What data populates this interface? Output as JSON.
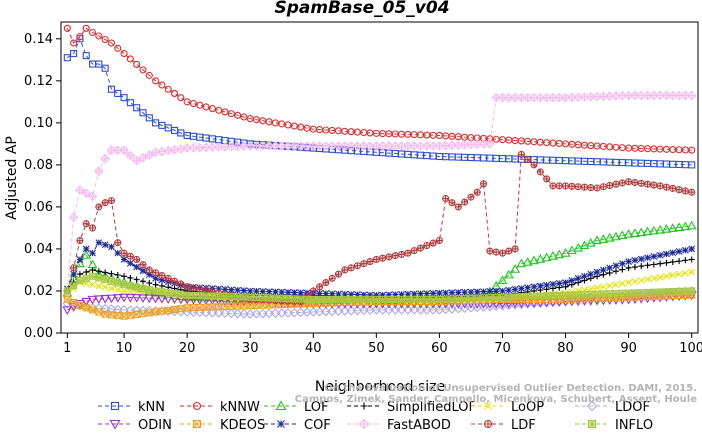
{
  "chart_data": {
    "type": "line",
    "title": "SpamBase_05_v04",
    "xlabel": "Neighborhood size",
    "ylabel": "Adjusted AP",
    "xlim": [
      0,
      101
    ],
    "ylim": [
      0,
      0.148
    ],
    "xticks": [
      1,
      10,
      20,
      30,
      40,
      50,
      60,
      70,
      80,
      90,
      100
    ],
    "yticks": [
      0.0,
      0.02,
      0.04,
      0.06,
      0.08,
      0.1,
      0.12,
      0.14
    ],
    "ytick_labels": [
      "0.00",
      "0.02",
      "0.04",
      "0.06",
      "0.08",
      "0.10",
      "0.12",
      "0.14"
    ],
    "grid": false,
    "legend_position": "bottom",
    "credit": "Campos, Zimek, Sander, Campello, Micenkova, Schubert, Assent, Houle",
    "credit_line1": "On the Evaluation of Unsupervised Outlier Detection. DAMI, 2015.",
    "series": [
      {
        "name": "kNN",
        "color": "#2b4fd1",
        "marker": "square",
        "points": [
          [
            1,
            0.131
          ],
          [
            2,
            0.133
          ],
          [
            3,
            0.14
          ],
          [
            4,
            0.132
          ],
          [
            5,
            0.128
          ],
          [
            6,
            0.128
          ],
          [
            7,
            0.126
          ],
          [
            8,
            0.116
          ],
          [
            10,
            0.112
          ],
          [
            15,
            0.1
          ],
          [
            20,
            0.094
          ],
          [
            30,
            0.09
          ],
          [
            40,
            0.088
          ],
          [
            50,
            0.086
          ],
          [
            60,
            0.084
          ],
          [
            70,
            0.083
          ],
          [
            80,
            0.082
          ],
          [
            90,
            0.081
          ],
          [
            100,
            0.08
          ]
        ]
      },
      {
        "name": "kNNW",
        "color": "#dd2a2a",
        "marker": "circle",
        "points": [
          [
            1,
            0.145
          ],
          [
            2,
            0.138
          ],
          [
            3,
            0.141
          ],
          [
            4,
            0.145
          ],
          [
            5,
            0.143
          ],
          [
            8,
            0.138
          ],
          [
            10,
            0.133
          ],
          [
            15,
            0.12
          ],
          [
            20,
            0.11
          ],
          [
            30,
            0.102
          ],
          [
            40,
            0.097
          ],
          [
            50,
            0.095
          ],
          [
            60,
            0.094
          ],
          [
            70,
            0.092
          ],
          [
            80,
            0.09
          ],
          [
            90,
            0.088
          ],
          [
            100,
            0.087
          ]
        ]
      },
      {
        "name": "LOF",
        "color": "#20c620",
        "marker": "triangle",
        "points": [
          [
            1,
            0.019
          ],
          [
            2,
            0.026
          ],
          [
            3,
            0.033
          ],
          [
            4,
            0.037
          ],
          [
            6,
            0.028
          ],
          [
            10,
            0.024
          ],
          [
            15,
            0.019
          ],
          [
            20,
            0.017
          ],
          [
            30,
            0.016
          ],
          [
            40,
            0.016
          ],
          [
            50,
            0.016
          ],
          [
            60,
            0.016
          ],
          [
            67,
            0.017
          ],
          [
            70,
            0.025
          ],
          [
            73,
            0.033
          ],
          [
            80,
            0.038
          ],
          [
            85,
            0.044
          ],
          [
            90,
            0.047
          ],
          [
            95,
            0.049
          ],
          [
            100,
            0.051
          ]
        ]
      },
      {
        "name": "SimplifiedLOF",
        "color": "#000000",
        "marker": "plus",
        "points": [
          [
            1,
            0.02
          ],
          [
            3,
            0.028
          ],
          [
            5,
            0.03
          ],
          [
            10,
            0.027
          ],
          [
            15,
            0.023
          ],
          [
            20,
            0.02
          ],
          [
            30,
            0.018
          ],
          [
            40,
            0.018
          ],
          [
            50,
            0.017
          ],
          [
            60,
            0.017
          ],
          [
            70,
            0.018
          ],
          [
            80,
            0.022
          ],
          [
            85,
            0.027
          ],
          [
            90,
            0.031
          ],
          [
            100,
            0.035
          ]
        ]
      },
      {
        "name": "LoOP",
        "color": "#e3e300",
        "marker": "cross",
        "points": [
          [
            1,
            0.018
          ],
          [
            3,
            0.024
          ],
          [
            5,
            0.023
          ],
          [
            10,
            0.02
          ],
          [
            20,
            0.017
          ],
          [
            30,
            0.015
          ],
          [
            40,
            0.015
          ],
          [
            50,
            0.015
          ],
          [
            60,
            0.015
          ],
          [
            70,
            0.016
          ],
          [
            80,
            0.019
          ],
          [
            90,
            0.024
          ],
          [
            100,
            0.029
          ]
        ]
      },
      {
        "name": "LDOF",
        "color": "#a9a9e8",
        "marker": "diamond",
        "points": [
          [
            1,
            0.014
          ],
          [
            5,
            0.012
          ],
          [
            10,
            0.011
          ],
          [
            20,
            0.01
          ],
          [
            30,
            0.009
          ],
          [
            40,
            0.01
          ],
          [
            50,
            0.011
          ],
          [
            60,
            0.011
          ],
          [
            70,
            0.013
          ],
          [
            80,
            0.015
          ],
          [
            90,
            0.018
          ],
          [
            100,
            0.02
          ]
        ]
      },
      {
        "name": "ODIN",
        "color": "#9a33cc",
        "marker": "triangle-down",
        "points": [
          [
            1,
            0.011
          ],
          [
            3,
            0.014
          ],
          [
            5,
            0.016
          ],
          [
            10,
            0.017
          ],
          [
            20,
            0.016
          ],
          [
            30,
            0.015
          ],
          [
            40,
            0.014
          ],
          [
            50,
            0.014
          ],
          [
            60,
            0.014
          ],
          [
            70,
            0.014
          ],
          [
            80,
            0.015
          ],
          [
            90,
            0.016
          ],
          [
            100,
            0.018
          ]
        ]
      },
      {
        "name": "KDEOS",
        "color": "#f0a020",
        "marker": "square-x",
        "points": [
          [
            1,
            0.016
          ],
          [
            3,
            0.013
          ],
          [
            5,
            0.011
          ],
          [
            7,
            0.009
          ],
          [
            10,
            0.008
          ],
          [
            15,
            0.01
          ],
          [
            20,
            0.012
          ],
          [
            30,
            0.013
          ],
          [
            40,
            0.014
          ],
          [
            50,
            0.015
          ],
          [
            60,
            0.015
          ],
          [
            70,
            0.016
          ],
          [
            80,
            0.016
          ],
          [
            90,
            0.017
          ],
          [
            100,
            0.018
          ]
        ]
      },
      {
        "name": "COF",
        "color": "#1a2a99",
        "marker": "asterisk",
        "points": [
          [
            1,
            0.021
          ],
          [
            3,
            0.035
          ],
          [
            4,
            0.04
          ],
          [
            5,
            0.038
          ],
          [
            6,
            0.043
          ],
          [
            8,
            0.041
          ],
          [
            10,
            0.035
          ],
          [
            15,
            0.026
          ],
          [
            20,
            0.022
          ],
          [
            30,
            0.02
          ],
          [
            40,
            0.019
          ],
          [
            50,
            0.018
          ],
          [
            60,
            0.019
          ],
          [
            70,
            0.02
          ],
          [
            80,
            0.024
          ],
          [
            85,
            0.029
          ],
          [
            90,
            0.034
          ],
          [
            95,
            0.037
          ],
          [
            100,
            0.04
          ]
        ]
      },
      {
        "name": "FastABOD",
        "color": "#f5b8f0",
        "marker": "diamond-plus",
        "points": [
          [
            1,
            0.02
          ],
          [
            2,
            0.055
          ],
          [
            3,
            0.068
          ],
          [
            5,
            0.065
          ],
          [
            6,
            0.077
          ],
          [
            7,
            0.083
          ],
          [
            8,
            0.087
          ],
          [
            10,
            0.087
          ],
          [
            12,
            0.082
          ],
          [
            15,
            0.086
          ],
          [
            20,
            0.088
          ],
          [
            30,
            0.089
          ],
          [
            40,
            0.089
          ],
          [
            50,
            0.089
          ],
          [
            60,
            0.089
          ],
          [
            68,
            0.09
          ],
          [
            69,
            0.112
          ],
          [
            75,
            0.112
          ],
          [
            80,
            0.112
          ],
          [
            90,
            0.113
          ],
          [
            100,
            0.113
          ]
        ]
      },
      {
        "name": "LDF",
        "color": "#b33a3a",
        "marker": "circle-plus",
        "points": [
          [
            1,
            0.02
          ],
          [
            2,
            0.031
          ],
          [
            3,
            0.044
          ],
          [
            4,
            0.052
          ],
          [
            5,
            0.05
          ],
          [
            6,
            0.06
          ],
          [
            7,
            0.062
          ],
          [
            8,
            0.063
          ],
          [
            9,
            0.043
          ],
          [
            10,
            0.038
          ],
          [
            12,
            0.035
          ],
          [
            14,
            0.03
          ],
          [
            20,
            0.022
          ],
          [
            30,
            0.016
          ],
          [
            38,
            0.015
          ],
          [
            40,
            0.02
          ],
          [
            45,
            0.03
          ],
          [
            50,
            0.035
          ],
          [
            55,
            0.038
          ],
          [
            60,
            0.044
          ],
          [
            61,
            0.064
          ],
          [
            63,
            0.06
          ],
          [
            66,
            0.067
          ],
          [
            67,
            0.071
          ],
          [
            68,
            0.039
          ],
          [
            70,
            0.038
          ],
          [
            72,
            0.04
          ],
          [
            73,
            0.085
          ],
          [
            75,
            0.08
          ],
          [
            78,
            0.07
          ],
          [
            80,
            0.07
          ],
          [
            85,
            0.069
          ],
          [
            90,
            0.072
          ],
          [
            95,
            0.07
          ],
          [
            100,
            0.067
          ]
        ]
      },
      {
        "name": "INFLO",
        "color": "#a8c840",
        "marker": "square-cross",
        "points": [
          [
            1,
            0.02
          ],
          [
            3,
            0.025
          ],
          [
            5,
            0.027
          ],
          [
            10,
            0.023
          ],
          [
            15,
            0.02
          ],
          [
            20,
            0.018
          ],
          [
            30,
            0.017
          ],
          [
            40,
            0.016
          ],
          [
            50,
            0.016
          ],
          [
            60,
            0.016
          ],
          [
            70,
            0.017
          ],
          [
            80,
            0.018
          ],
          [
            90,
            0.019
          ],
          [
            100,
            0.02
          ]
        ]
      }
    ]
  }
}
